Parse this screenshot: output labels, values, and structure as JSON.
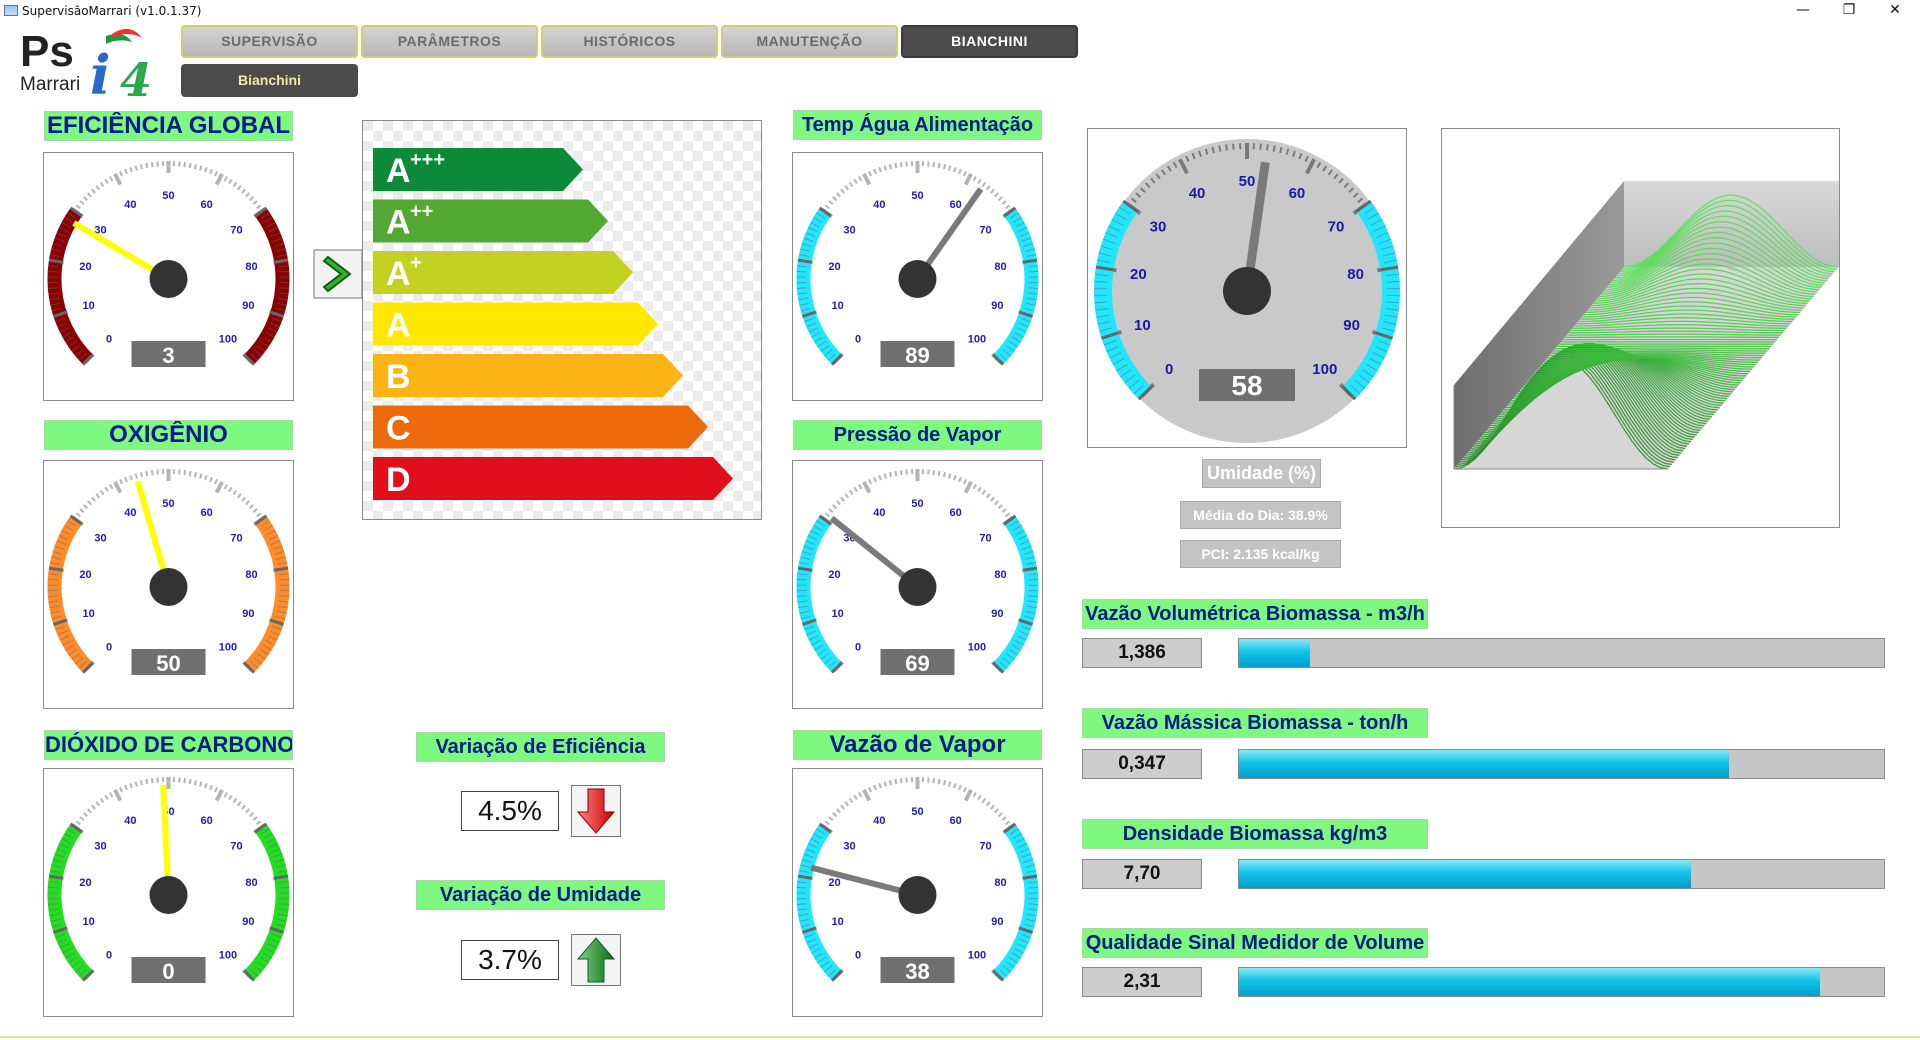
{
  "window": {
    "title": "SupervisãoMarrari (v1.0.1.37)",
    "minimize_glyph": "—",
    "restore_glyph": "❐",
    "close_glyph": "✕"
  },
  "logo": {
    "text_ps": "Ps",
    "text_i": "i",
    "text_4": "4",
    "text_brand": "Marrari"
  },
  "nav": {
    "tabs": [
      "SUPERVISÃO",
      "PARÂMETROS",
      "HISTÓRICOS",
      "MANUTENÇÃO",
      "BIANCHINI"
    ],
    "active_tab": "BIANCHINI",
    "subtab": "Bianchini"
  },
  "gauges": {
    "eficiencia": {
      "title": "EFICIÊNCIA GLOBAL",
      "value": 3,
      "display": "3",
      "needle_value": 28,
      "needle_color": "#ffff00",
      "band_color": "#8b0000",
      "ticks": [
        "0",
        "10",
        "20",
        "30",
        "40",
        "50",
        "60",
        "70",
        "80",
        "90",
        "100"
      ]
    },
    "oxigenio": {
      "title": "OXIGÊNIO",
      "value": 50,
      "display": "50",
      "needle_value": 44,
      "needle_color": "#ffff00",
      "band_color": "#ff8c2a",
      "ticks": [
        "0",
        "10",
        "20",
        "30",
        "40",
        "50",
        "60",
        "70",
        "80",
        "90",
        "100"
      ]
    },
    "co2": {
      "title": "DIÓXIDO DE CARBONO",
      "value": 0,
      "display": "0",
      "needle_value": 49,
      "needle_color": "#ffff00",
      "band_color": "#22dd22",
      "ticks": [
        "0",
        "10",
        "20",
        "30",
        "40",
        "50",
        "60",
        "70",
        "80",
        "90",
        "100"
      ]
    },
    "temp_agua": {
      "title": "Temp Água Alimentação",
      "value": 89,
      "display": "89",
      "needle_value": 63,
      "needle_color": "#7a7a7a",
      "band_color": "#22e6ff",
      "ticks": [
        "0",
        "10",
        "20",
        "30",
        "40",
        "50",
        "60",
        "70",
        "80",
        "90",
        "100"
      ]
    },
    "pressao_vapor": {
      "title": "Pressão de Vapor",
      "value": 69,
      "display": "69",
      "needle_value": 31,
      "needle_color": "#7a7a7a",
      "band_color": "#22e6ff",
      "ticks": [
        "0",
        "10",
        "20",
        "30",
        "40",
        "50",
        "60",
        "70",
        "80",
        "90",
        "100"
      ]
    },
    "vazao_vapor": {
      "title": "Vazão de Vapor",
      "value": 38,
      "display": "38",
      "needle_value": 22,
      "needle_color": "#7a7a7a",
      "band_color": "#22e6ff",
      "ticks": [
        "0",
        "10",
        "20",
        "30",
        "40",
        "50",
        "60",
        "70",
        "80",
        "90",
        "100"
      ]
    },
    "umidade": {
      "title": "Umidade (%)",
      "value": 58,
      "display": "58",
      "needle_value": 53,
      "needle_color": "#7a7a7a",
      "band_color": "#22e6ff",
      "ticks": [
        "0",
        "10",
        "20",
        "30",
        "40",
        "50",
        "60",
        "70",
        "80",
        "90",
        "100"
      ]
    }
  },
  "energy_rating": {
    "indicator_glyph": ">",
    "classes": [
      {
        "letter": "A",
        "sup": "+++",
        "color": "#0b8a3a"
      },
      {
        "letter": "A",
        "sup": "++",
        "color": "#52a832"
      },
      {
        "letter": "A",
        "sup": "+",
        "color": "#c3d220"
      },
      {
        "letter": "A",
        "sup": "",
        "color": "#ffe800"
      },
      {
        "letter": "B",
        "sup": "",
        "color": "#fbb414"
      },
      {
        "letter": "C",
        "sup": "",
        "color": "#ec6a0c"
      },
      {
        "letter": "D",
        "sup": "",
        "color": "#e10e1c"
      }
    ]
  },
  "variacao": {
    "eficiencia": {
      "title": "Variação de Eficiência",
      "value": "4.5%",
      "direction": "down"
    },
    "umidade": {
      "title": "Variação de Umidade",
      "value": "3.7%",
      "direction": "up"
    }
  },
  "umidade_info": {
    "media": "Média do Dia: 38.9%",
    "pci": "PCI: 2.135 kcal/kg"
  },
  "bars": [
    {
      "title": "Vazão Volumétrica Biomassa - m3/h",
      "value": "1,386",
      "fraction": 0.11
    },
    {
      "title": "Vazão Mássica Biomassa - ton/h",
      "value": "0,347",
      "fraction": 0.76
    },
    {
      "title": "Densidade Biomassa kg/m3",
      "value": "7,70",
      "fraction": 0.7
    },
    {
      "title": "Qualidade Sinal Medidor de Volume",
      "value": "2,31",
      "fraction": 0.9
    }
  ],
  "colors": {
    "label_green": "#7ef87e",
    "label_text": "#001a8a",
    "bar_fill": "#13c3e8",
    "surface_green": "#32e632"
  }
}
